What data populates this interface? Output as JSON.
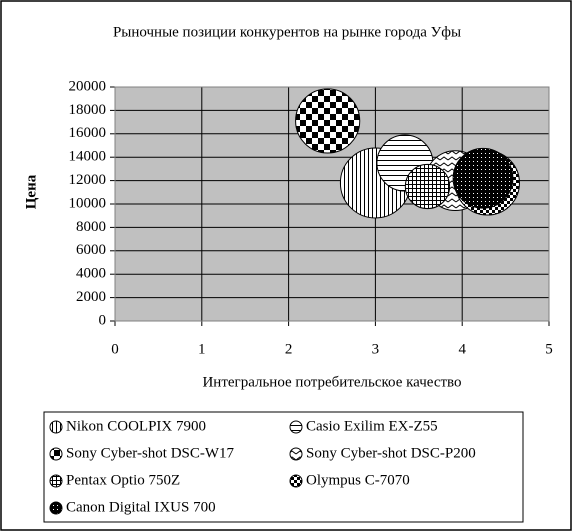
{
  "chart_data": {
    "type": "bubble",
    "title": "Рыночные позиции конкурентов на рынке города Уфы",
    "x_label": "Интегральное потребительское качество",
    "y_label": "Цена",
    "xlim": [
      0,
      5
    ],
    "xticks": [
      0,
      1,
      2,
      3,
      4,
      5
    ],
    "ylim": [
      0,
      20000
    ],
    "yticks": [
      0,
      2000,
      4000,
      6000,
      8000,
      10000,
      12000,
      14000,
      16000,
      18000,
      20000
    ],
    "grid": true,
    "series": [
      {
        "name": "Nikon COOLPIX 7900",
        "x": [
          3.0
        ],
        "values": [
          11800
        ],
        "sizes": [
          100
        ]
      },
      {
        "name": "Casio Exilim EX-Z55",
        "x": [
          3.34
        ],
        "values": [
          13500
        ],
        "sizes": [
          64
        ]
      },
      {
        "name": "Sony Cyber-shot DSC-W17",
        "x": [
          2.45
        ],
        "values": [
          17100
        ],
        "sizes": [
          84
        ]
      },
      {
        "name": "Sony Cyber-shot DSC-P200",
        "x": [
          3.92
        ],
        "values": [
          12000
        ],
        "sizes": [
          73
        ]
      },
      {
        "name": "Pentax Optio 750Z",
        "x": [
          3.6
        ],
        "values": [
          11500
        ],
        "sizes": [
          40
        ]
      },
      {
        "name": "Olympus C-7070",
        "x": [
          4.29
        ],
        "values": [
          11800
        ],
        "sizes": [
          84
        ]
      },
      {
        "name": "Canon Digital IXUS 700",
        "x": [
          4.24
        ],
        "values": [
          12200
        ],
        "sizes": [
          73
        ]
      }
    ]
  }
}
